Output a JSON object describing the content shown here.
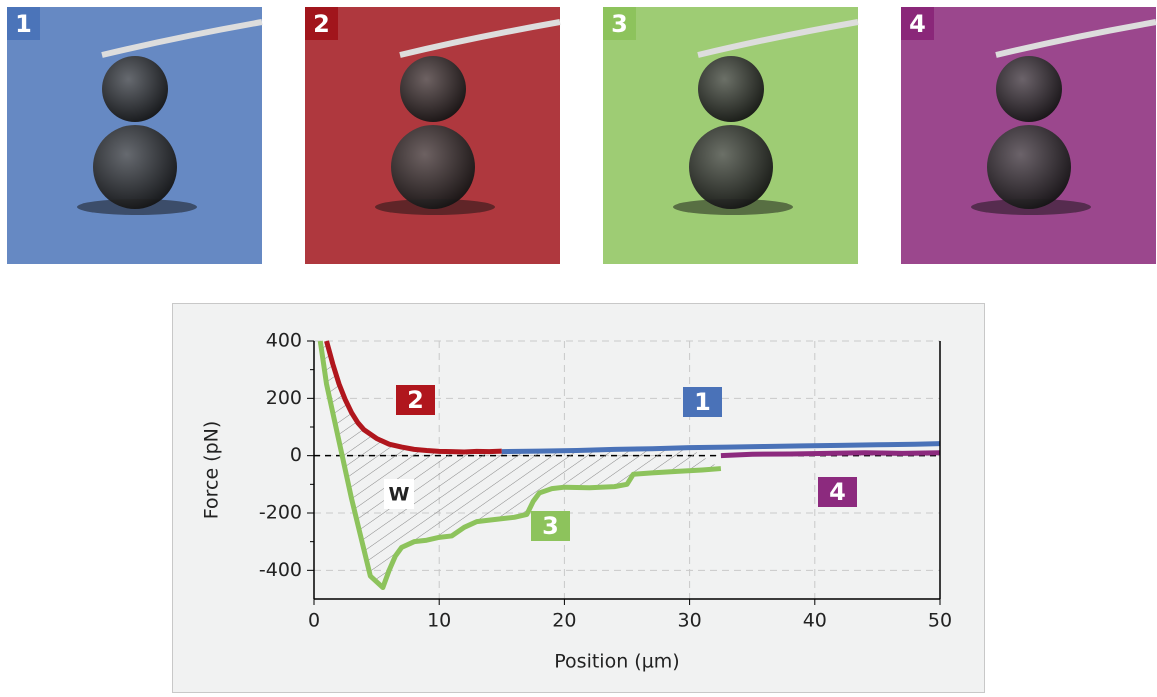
{
  "images": [
    {
      "label": "1",
      "color": "#4b74b9"
    },
    {
      "label": "2",
      "color": "#a1151c"
    },
    {
      "label": "3",
      "color": "#8dc35c"
    },
    {
      "label": "4",
      "color": "#8a2779"
    }
  ],
  "chart_data": {
    "type": "line",
    "x_label": "Position (µm)",
    "y_label": "Force (pN)",
    "annotation": "W",
    "xlim": [
      0,
      50
    ],
    "xticks": [
      0,
      10,
      20,
      30,
      40,
      50
    ],
    "ylim": [
      -500,
      400
    ],
    "yticks": [
      -400,
      -200,
      0,
      200,
      400
    ],
    "grid": true,
    "series": [
      {
        "name": "1",
        "color": "#4a72b8",
        "x": [
          15,
          18,
          21,
          24,
          27,
          30,
          33,
          36,
          39,
          42,
          45,
          48,
          50
        ],
        "values": [
          14,
          16,
          18,
          22,
          24,
          28,
          30,
          32,
          34,
          36,
          38,
          40,
          42
        ]
      },
      {
        "name": "2",
        "color": "#b0161d",
        "x": [
          1,
          1.5,
          2,
          2.5,
          3,
          3.5,
          4,
          5,
          6,
          7,
          8,
          9,
          10,
          11,
          12,
          13,
          14,
          15
        ],
        "values": [
          400,
          320,
          250,
          195,
          150,
          115,
          90,
          60,
          40,
          30,
          22,
          18,
          15,
          14,
          13,
          15,
          14,
          16
        ]
      },
      {
        "name": "3",
        "color": "#8dc35c",
        "x": [
          0.5,
          1,
          2,
          3,
          4,
          4.5,
          5,
          5.5,
          6,
          6.5,
          7,
          8,
          9,
          10,
          11,
          12,
          13,
          14,
          16,
          17,
          17.5,
          18,
          19,
          20,
          22,
          24,
          25,
          25.5,
          27,
          29,
          31,
          32.5
        ],
        "values": [
          400,
          250,
          50,
          -150,
          -330,
          -420,
          -440,
          -460,
          -400,
          -350,
          -320,
          -300,
          -295,
          -285,
          -280,
          -250,
          -230,
          -225,
          -215,
          -205,
          -160,
          -130,
          -115,
          -110,
          -112,
          -108,
          -100,
          -65,
          -60,
          -55,
          -50,
          -45
        ]
      },
      {
        "name": "4",
        "color": "#8c2a7e",
        "x": [
          32.5,
          35,
          38,
          41,
          44,
          47,
          50
        ],
        "values": [
          0,
          5,
          6,
          8,
          10,
          8,
          10
        ]
      }
    ]
  }
}
